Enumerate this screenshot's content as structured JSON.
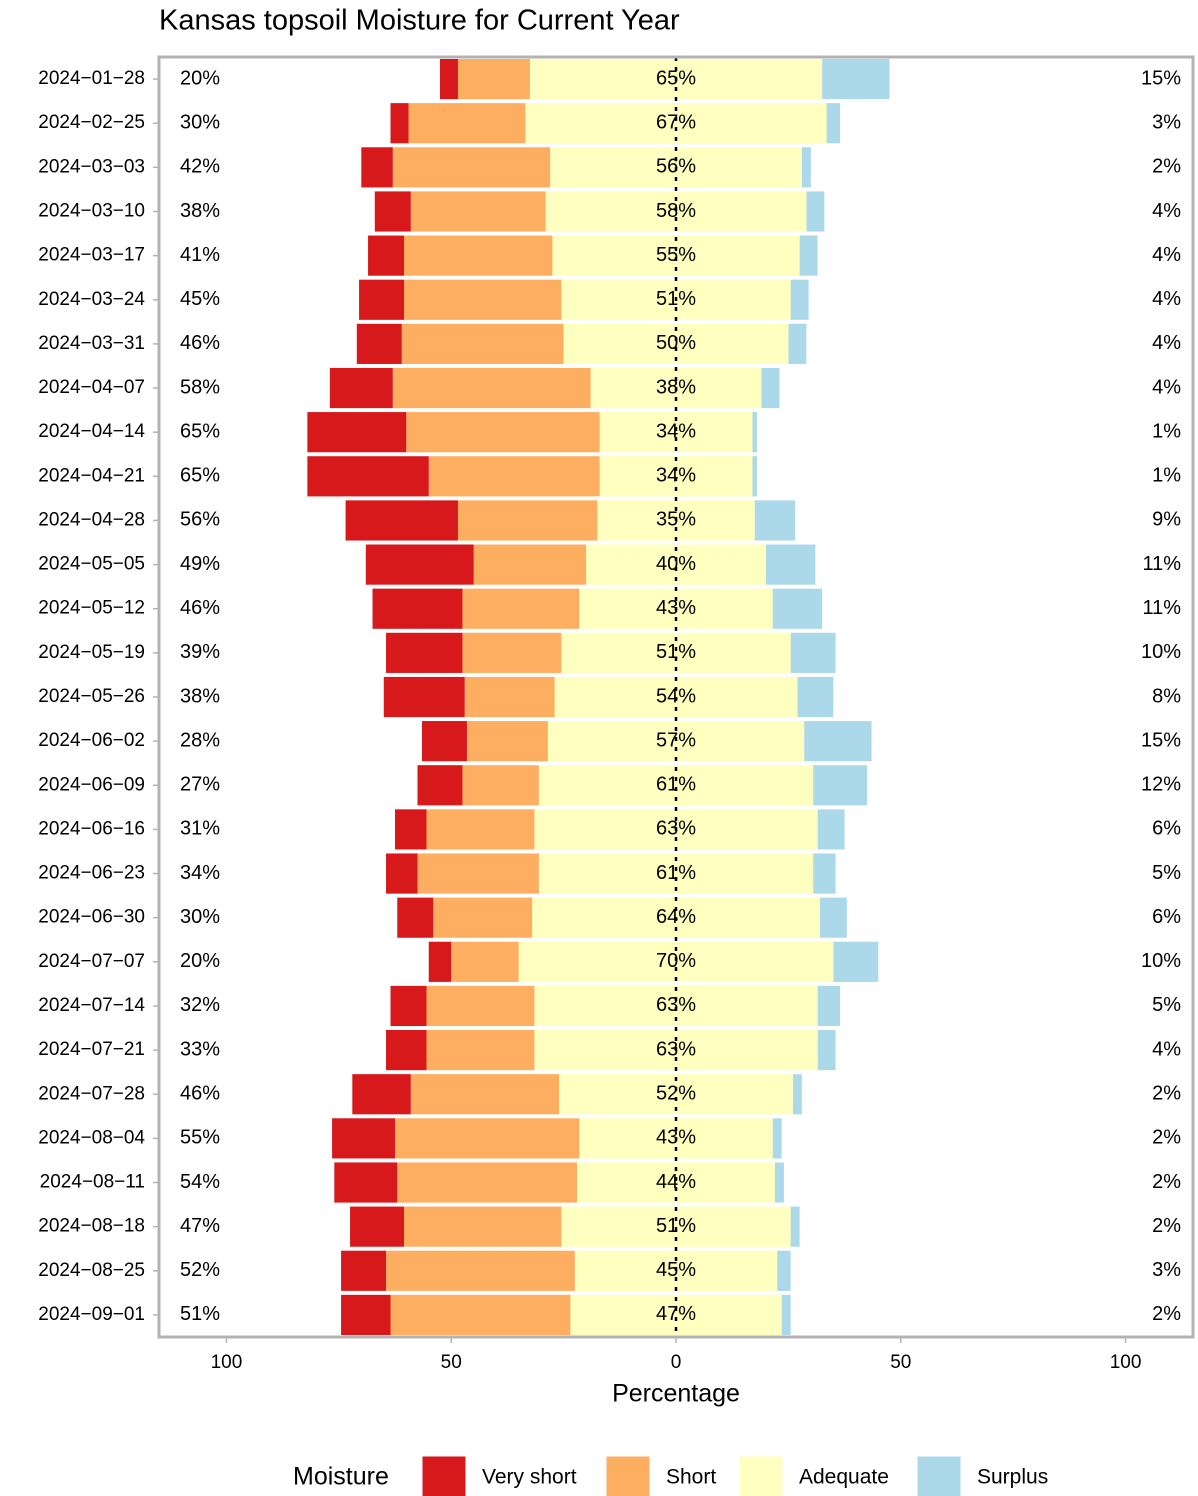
{
  "chart_data": {
    "type": "diverging-bar",
    "title": "Kansas topsoil Moisture for Current Year",
    "x_label": "Percentage",
    "legend_title": "Moisture",
    "categories": [
      "2024−01−28",
      "2024−02−25",
      "2024−03−03",
      "2024−03−10",
      "2024−03−17",
      "2024−03−24",
      "2024−03−31",
      "2024−04−07",
      "2024−04−14",
      "2024−04−21",
      "2024−04−28",
      "2024−05−05",
      "2024−05−12",
      "2024−05−19",
      "2024−05−26",
      "2024−06−02",
      "2024−06−09",
      "2024−06−16",
      "2024−06−23",
      "2024−06−30",
      "2024−07−07",
      "2024−07−14",
      "2024−07−21",
      "2024−07−28",
      "2024−08−04",
      "2024−08−11",
      "2024−08−18",
      "2024−08−25",
      "2024−09−01"
    ],
    "left_labels": [
      "20%",
      "30%",
      "42%",
      "38%",
      "41%",
      "45%",
      "46%",
      "58%",
      "65%",
      "65%",
      "56%",
      "49%",
      "46%",
      "39%",
      "38%",
      "28%",
      "27%",
      "31%",
      "34%",
      "30%",
      "20%",
      "32%",
      "33%",
      "46%",
      "55%",
      "54%",
      "47%",
      "52%",
      "51%"
    ],
    "series": [
      {
        "name": "Very short",
        "color": "#d7191c",
        "values": [
          4,
          4,
          7,
          8,
          8,
          10,
          10,
          14,
          22,
          27,
          25,
          24,
          20,
          17,
          18,
          10,
          10,
          7,
          7,
          8,
          5,
          8,
          9,
          13,
          14,
          14,
          12,
          10,
          11
        ]
      },
      {
        "name": "Short",
        "color": "#fdae61",
        "values": [
          16,
          26,
          35,
          30,
          33,
          35,
          36,
          44,
          43,
          38,
          31,
          25,
          26,
          22,
          20,
          18,
          17,
          24,
          27,
          22,
          15,
          24,
          24,
          33,
          41,
          40,
          35,
          42,
          40
        ]
      },
      {
        "name": "Adequate",
        "color": "#ffffbf",
        "values": [
          65,
          67,
          56,
          58,
          55,
          51,
          50,
          38,
          34,
          34,
          35,
          40,
          43,
          51,
          54,
          57,
          61,
          63,
          61,
          64,
          70,
          63,
          63,
          52,
          43,
          44,
          51,
          45,
          47
        ],
        "value_labels": [
          "65%",
          "67%",
          "56%",
          "58%",
          "55%",
          "51%",
          "50%",
          "38%",
          "34%",
          "34%",
          "35%",
          "40%",
          "43%",
          "51%",
          "54%",
          "57%",
          "61%",
          "63%",
          "61%",
          "64%",
          "70%",
          "63%",
          "63%",
          "52%",
          "43%",
          "44%",
          "51%",
          "45%",
          "47%"
        ]
      },
      {
        "name": "Surplus",
        "color": "#abd9e9",
        "values": [
          15,
          3,
          2,
          4,
          4,
          4,
          4,
          4,
          1,
          1,
          9,
          11,
          11,
          10,
          8,
          15,
          12,
          6,
          5,
          6,
          10,
          5,
          4,
          2,
          2,
          2,
          2,
          3,
          2
        ],
        "value_labels": [
          "15%",
          "3%",
          "2%",
          "4%",
          "4%",
          "4%",
          "4%",
          "4%",
          "1%",
          "1%",
          "9%",
          "11%",
          "11%",
          "10%",
          "8%",
          "15%",
          "12%",
          "6%",
          "5%",
          "6%",
          "10%",
          "5%",
          "4%",
          "2%",
          "2%",
          "2%",
          "2%",
          "3%",
          "2%"
        ]
      }
    ],
    "xlim": [
      -115,
      115
    ],
    "xticks": [
      {
        "value": -100,
        "label": "100"
      },
      {
        "value": -50,
        "label": "50"
      },
      0,
      50,
      100
    ]
  }
}
